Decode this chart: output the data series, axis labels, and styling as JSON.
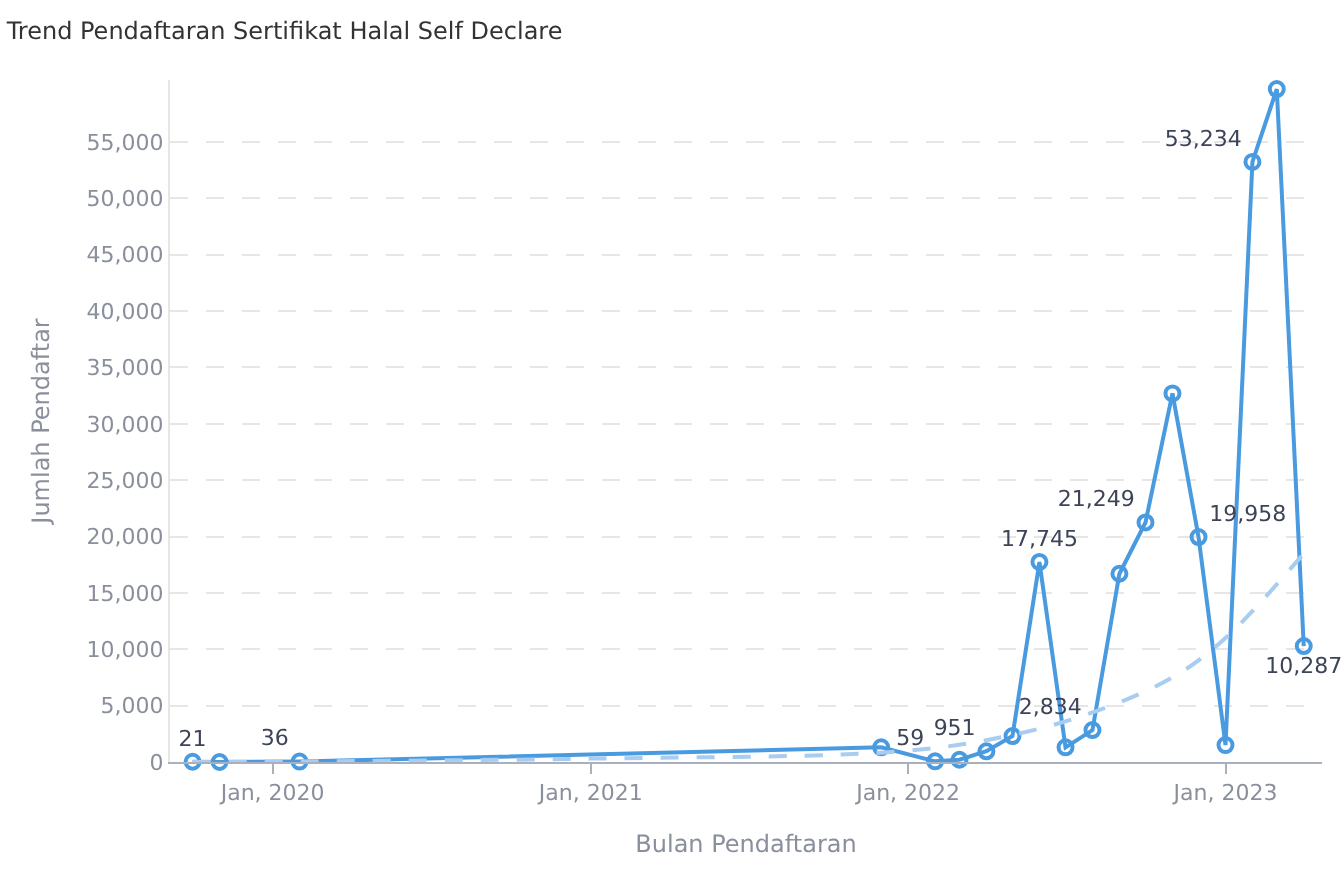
{
  "chart_data": {
    "type": "line",
    "title": "Trend Pendaftaran Sertifikat Halal Self Declare",
    "xlabel": "Bulan Pendaftaran",
    "ylabel": "Jumlah Pendaftar",
    "xlim": [
      "2019-09-05",
      "2023-04-22"
    ],
    "ylim": [
      0,
      60500
    ],
    "xticks": [
      {
        "value": "2020-01",
        "label": "Jan, 2020"
      },
      {
        "value": "2021-01",
        "label": "Jan, 2021"
      },
      {
        "value": "2022-01",
        "label": "Jan, 2022"
      },
      {
        "value": "2023-01",
        "label": "Jan, 2023"
      }
    ],
    "yticks": [
      0,
      {
        "value": 5000,
        "label": "5,000"
      },
      {
        "value": 10000,
        "label": "10,000"
      },
      {
        "value": 15000,
        "label": "15,000"
      },
      {
        "value": 20000,
        "label": "20,000"
      },
      {
        "value": 25000,
        "label": "25,000"
      },
      {
        "value": 30000,
        "label": "30,000"
      },
      {
        "value": 35000,
        "label": "35,000"
      },
      {
        "value": 40000,
        "label": "40,000"
      },
      {
        "value": 45000,
        "label": "45,000"
      },
      {
        "value": 50000,
        "label": "50,000"
      },
      {
        "value": 55000,
        "label": "55,000"
      }
    ],
    "grid": "y",
    "legend": false,
    "series": [
      {
        "color": "#4a9ae0",
        "marker": "circle",
        "line_style": "solid",
        "x": [
          "2019-10",
          "2019-11",
          "2020-02",
          "2021-12",
          "2022-02",
          "2022-03",
          "2022-04",
          "2022-05",
          "2022-06",
          "2022-07",
          "2022-08",
          "2022-09",
          "2022-10",
          "2022-11",
          "2022-12",
          "2023-01",
          "2023-02",
          "2023-03",
          "2023-04"
        ],
        "values": [
          21,
          0,
          36,
          1300,
          59,
          200,
          951,
          2300,
          17745,
          1300,
          2834,
          16700,
          21249,
          32700,
          19958,
          1500,
          53234,
          59700,
          10287
        ],
        "value_labels": [
          "21",
          null,
          "36",
          null,
          "59",
          null,
          "951",
          null,
          "17,745",
          null,
          "2,834",
          null,
          "21,249",
          null,
          "19,958",
          null,
          "53,234",
          null,
          "10,287"
        ]
      },
      {
        "color": "#a8cdf0",
        "marker": "none",
        "line_style": "dashed",
        "x": [
          "2019-10",
          "2021-01",
          "2022-01",
          "2022-05",
          "2022-08",
          "2022-11",
          "2023-01",
          "2023-04"
        ],
        "values": [
          0,
          300,
          1000,
          2400,
          4400,
          7500,
          11000,
          18500
        ]
      }
    ]
  }
}
